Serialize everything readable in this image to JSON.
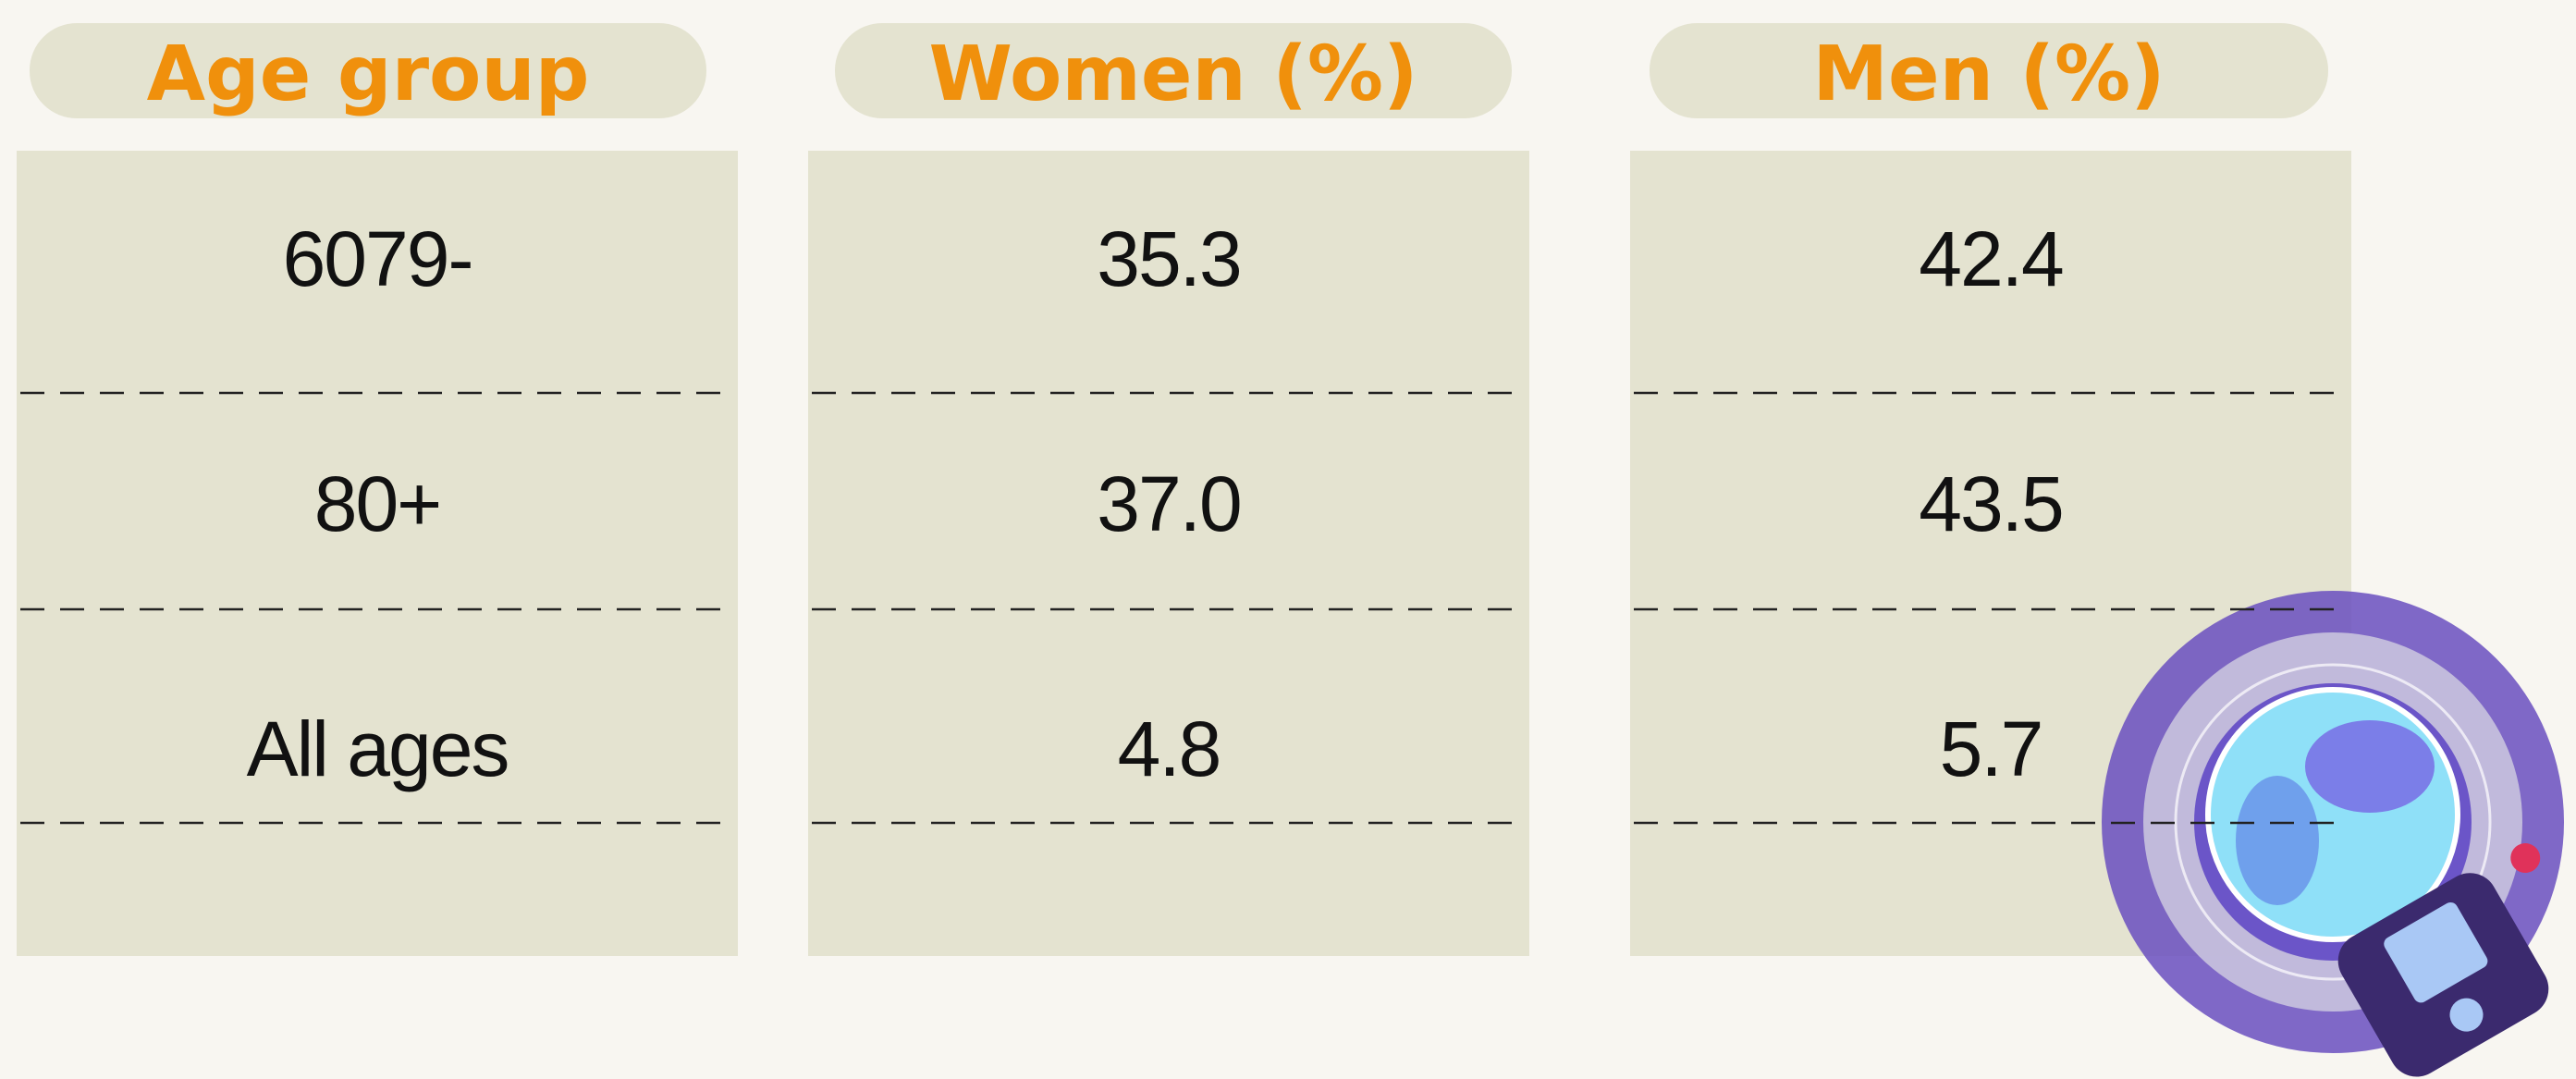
{
  "table": {
    "columns": [
      "Age group",
      "Women (%)",
      "Men (%)"
    ],
    "rows": [
      [
        "6079-",
        "35.3",
        "42.4"
      ],
      [
        "80+",
        "37.0",
        "43.5"
      ],
      [
        "All ages",
        "4.8",
        "5.7"
      ]
    ]
  }
}
